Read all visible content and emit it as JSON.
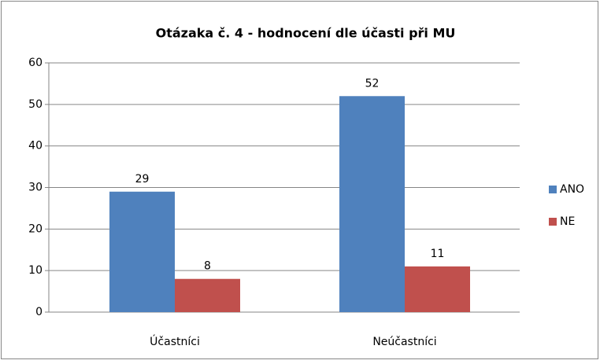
{
  "chart_data": {
    "type": "bar",
    "title": "Otázaka č. 4 - hodnocení dle účasti při MU",
    "categories": [
      "Účastníci",
      "Neúčastníci"
    ],
    "series": [
      {
        "name": "ANO",
        "color": "#4f81bd",
        "values": [
          29,
          52
        ]
      },
      {
        "name": "NE",
        "color": "#c0504d",
        "values": [
          8,
          11
        ]
      }
    ],
    "ylim": [
      0,
      60
    ],
    "yticks": [
      0,
      10,
      20,
      30,
      40,
      50,
      60
    ],
    "grid": true,
    "legend": "right"
  }
}
